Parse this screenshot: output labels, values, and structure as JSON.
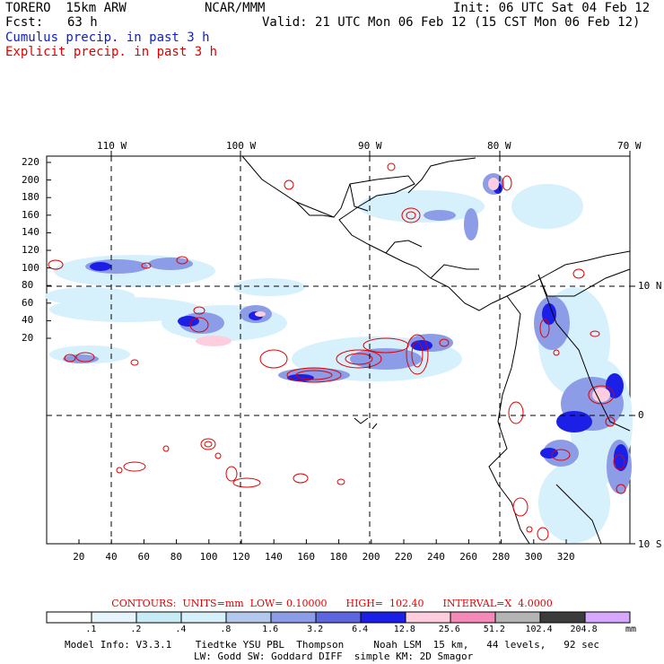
{
  "header": {
    "model": "TORERO  15km ARW",
    "org": "NCAR/MMM",
    "init": "Init: 06 UTC Sat 04 Feb 12",
    "fcst_label": "Fcst:",
    "fcst_value": "63 h",
    "valid": "Valid: 21 UTC Mon 06 Feb 12 (15 CST Mon 06 Feb 12)",
    "cumulus": "Cumulus precip. in past 3 h",
    "explicit": "Explicit precip. in past 3 h"
  },
  "colors": {
    "cumulus_text": "#1020c0",
    "explicit_text": "#e00000",
    "contour": "#e00000"
  },
  "map": {
    "lon_labels": [
      "110 W",
      "100 W",
      "90 W",
      "80 W",
      "70 W"
    ],
    "lat_labels": [
      "10 N",
      "0",
      "10 S"
    ],
    "y_ticks": [
      "220",
      "200",
      "180",
      "160",
      "140",
      "120",
      "100",
      "80",
      "60",
      "40",
      "20"
    ],
    "x_ticks": [
      "20",
      "40",
      "60",
      "80",
      "100",
      "120",
      "140",
      "160",
      "180",
      "200",
      "220",
      "240",
      "260",
      "280",
      "300",
      "320"
    ]
  },
  "contours_info": {
    "units": "CONTOURS:  UNITS=mm  LOW= 0.10000",
    "high": "HIGH=  102.40",
    "interval": "INTERVAL=X  4.0000"
  },
  "legend": {
    "labels": [
      ".1",
      ".2",
      ".4",
      ".8",
      "1.6",
      "3.2",
      "6.4",
      "12.8",
      "25.6",
      "51.2",
      "102.4",
      "204.8"
    ],
    "unit": "mm",
    "colors": [
      "#ffffff",
      "#e6f5fb",
      "#c8ecf6",
      "#d6f0fc",
      "#b4c8ee",
      "#8d9ce6",
      "#5d66de",
      "#1c20e6",
      "#ffcede",
      "#f589b8",
      "#b4b4b4",
      "#3c3c3c",
      "#d7a8ff"
    ]
  },
  "footer": {
    "line1": "Model Info: V3.3.1    Tiedtke YSU PBL  Thompson     Noah LSM  15 km,   44 levels,   92 sec",
    "line2": "LW: Godd SW: Goddard DIFF  simple KM: 2D Smagor"
  }
}
